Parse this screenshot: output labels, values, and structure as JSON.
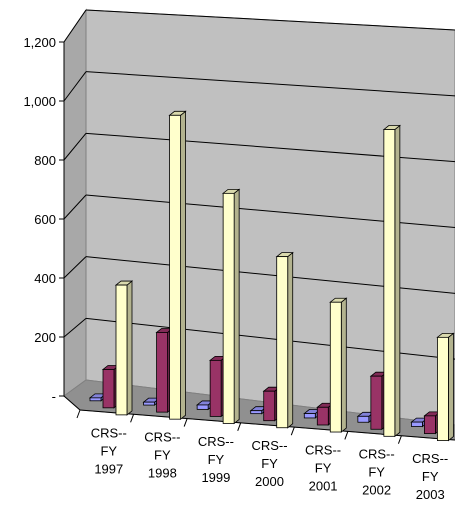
{
  "chart_data": {
    "type": "bar",
    "style": "3d-clustered-column",
    "categories": [
      [
        "CRS--",
        "FY",
        "1997"
      ],
      [
        "CRS--",
        "FY",
        "1998"
      ],
      [
        "CRS--",
        "FY",
        "1999"
      ],
      [
        "CRS--",
        "FY",
        "2000"
      ],
      [
        "CRS--",
        "FY",
        "2001"
      ],
      [
        "CRS--",
        "FY",
        "2002"
      ],
      [
        "CRS--",
        "FY",
        "2003"
      ]
    ],
    "series": [
      {
        "color": "#9999ff",
        "values": [
          10,
          10,
          15,
          10,
          15,
          20,
          15
        ]
      },
      {
        "color": "#993366",
        "values": [
          130,
          270,
          190,
          100,
          60,
          180,
          60
        ]
      },
      {
        "color": "#ffffcc",
        "values": [
          440,
          1030,
          780,
          580,
          440,
          1040,
          350
        ]
      }
    ],
    "yticks": [
      "-",
      "200",
      "400",
      "600",
      "800",
      "1,000",
      "1,200"
    ],
    "ylim": [
      0,
      1200
    ],
    "grid": true,
    "legend": "none",
    "title": "",
    "xlabel": "",
    "ylabel": ""
  }
}
